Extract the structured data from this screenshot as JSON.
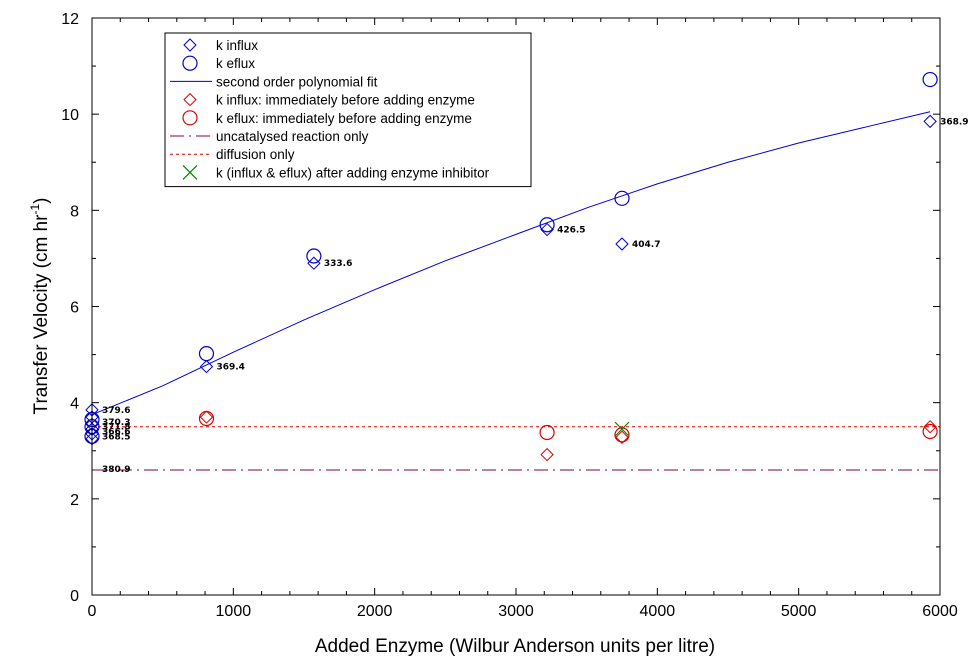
{
  "chart_data": {
    "type": "scatter",
    "xlabel": "Added Enzyme (Wilbur Anderson units per litre)",
    "ylabel_main": "Transfer Velocity (cm hr",
    "ylabel_sup": "-1",
    "ylabel_close": ")",
    "xlim": [
      0,
      6000
    ],
    "ylim": [
      0,
      12
    ],
    "x_ticks": [
      "0",
      "1000",
      "2000",
      "3000",
      "4000",
      "5000",
      "6000"
    ],
    "y_ticks": [
      "0",
      "2",
      "4",
      "6",
      "8",
      "10",
      "12"
    ],
    "grid": false,
    "legend_position": "top-left",
    "series": [
      {
        "name": "k influx",
        "marker": "diamond",
        "color": "#0000cc",
        "points": [
          {
            "x": 0,
            "y": 3.25
          },
          {
            "x": 0,
            "y": 3.35
          },
          {
            "x": 0,
            "y": 3.45
          },
          {
            "x": 0,
            "y": 3.55
          },
          {
            "x": 0,
            "y": 3.7
          },
          {
            "x": 0,
            "y": 3.85
          },
          {
            "x": 810,
            "y": 4.75
          },
          {
            "x": 1570,
            "y": 6.9
          },
          {
            "x": 3220,
            "y": 7.6
          },
          {
            "x": 3750,
            "y": 7.3
          },
          {
            "x": 5930,
            "y": 9.85
          }
        ]
      },
      {
        "name": "k eflux",
        "marker": "circle",
        "color": "#0000cc",
        "points": [
          {
            "x": 0,
            "y": 3.3
          },
          {
            "x": 0,
            "y": 3.5
          },
          {
            "x": 0,
            "y": 3.65
          },
          {
            "x": 810,
            "y": 5.02
          },
          {
            "x": 1570,
            "y": 7.05
          },
          {
            "x": 3220,
            "y": 7.7
          },
          {
            "x": 3750,
            "y": 8.25
          },
          {
            "x": 5930,
            "y": 10.72
          }
        ]
      },
      {
        "name": "second order polynomial fit",
        "line": "solid",
        "color": "#0000cc",
        "points": [
          {
            "x": 0,
            "y": 3.75
          },
          {
            "x": 500,
            "y": 4.35
          },
          {
            "x": 1000,
            "y": 5.05
          },
          {
            "x": 1500,
            "y": 5.72
          },
          {
            "x": 2000,
            "y": 6.35
          },
          {
            "x": 2500,
            "y": 6.95
          },
          {
            "x": 3000,
            "y": 7.5
          },
          {
            "x": 3500,
            "y": 8.05
          },
          {
            "x": 4000,
            "y": 8.55
          },
          {
            "x": 4500,
            "y": 9.0
          },
          {
            "x": 5000,
            "y": 9.4
          },
          {
            "x": 5500,
            "y": 9.75
          },
          {
            "x": 5930,
            "y": 10.05
          }
        ]
      },
      {
        "name": "k influx: immediately before adding enzyme",
        "marker": "diamond",
        "color": "#dd0000",
        "points": [
          {
            "x": 810,
            "y": 3.7
          },
          {
            "x": 3220,
            "y": 2.92
          },
          {
            "x": 3750,
            "y": 3.28
          },
          {
            "x": 5930,
            "y": 3.5
          }
        ]
      },
      {
        "name": "k eflux: immediately before adding enzyme",
        "marker": "circle",
        "color": "#dd0000",
        "points": [
          {
            "x": 810,
            "y": 3.67
          },
          {
            "x": 3220,
            "y": 3.38
          },
          {
            "x": 3750,
            "y": 3.33
          },
          {
            "x": 5930,
            "y": 3.4
          }
        ]
      },
      {
        "name": "uncatalysed reaction only",
        "line": "dashdot",
        "color": "#800040",
        "points": [
          {
            "x": 0,
            "y": 2.6
          },
          {
            "x": 6000,
            "y": 2.6
          }
        ]
      },
      {
        "name": "diffusion only",
        "line": "dotted",
        "color": "#dd0000",
        "points": [
          {
            "x": 0,
            "y": 3.5
          },
          {
            "x": 6000,
            "y": 3.5
          }
        ]
      },
      {
        "name": "k (influx & eflux) after adding enzyme inhibitor",
        "marker": "cross",
        "color": "#008800",
        "points": [
          {
            "x": 3750,
            "y": 3.45
          }
        ]
      }
    ],
    "annotations": [
      {
        "text": "379.6",
        "x": 0,
        "y": 3.85
      },
      {
        "text": "370.3",
        "x": 0,
        "y": 3.6
      },
      {
        "text": "371.8",
        "x": 0,
        "y": 3.5
      },
      {
        "text": "366.6",
        "x": 0,
        "y": 3.4
      },
      {
        "text": "368.5",
        "x": 0,
        "y": 3.3
      },
      {
        "text": "380.9",
        "x": 0,
        "y": 2.62
      },
      {
        "text": "369.4",
        "x": 810,
        "y": 4.75
      },
      {
        "text": "333.6",
        "x": 1570,
        "y": 6.9
      },
      {
        "text": "426.5",
        "x": 3220,
        "y": 7.6
      },
      {
        "text": "404.7",
        "x": 3750,
        "y": 7.3
      },
      {
        "text": "368.9",
        "x": 5930,
        "y": 9.85
      }
    ]
  }
}
